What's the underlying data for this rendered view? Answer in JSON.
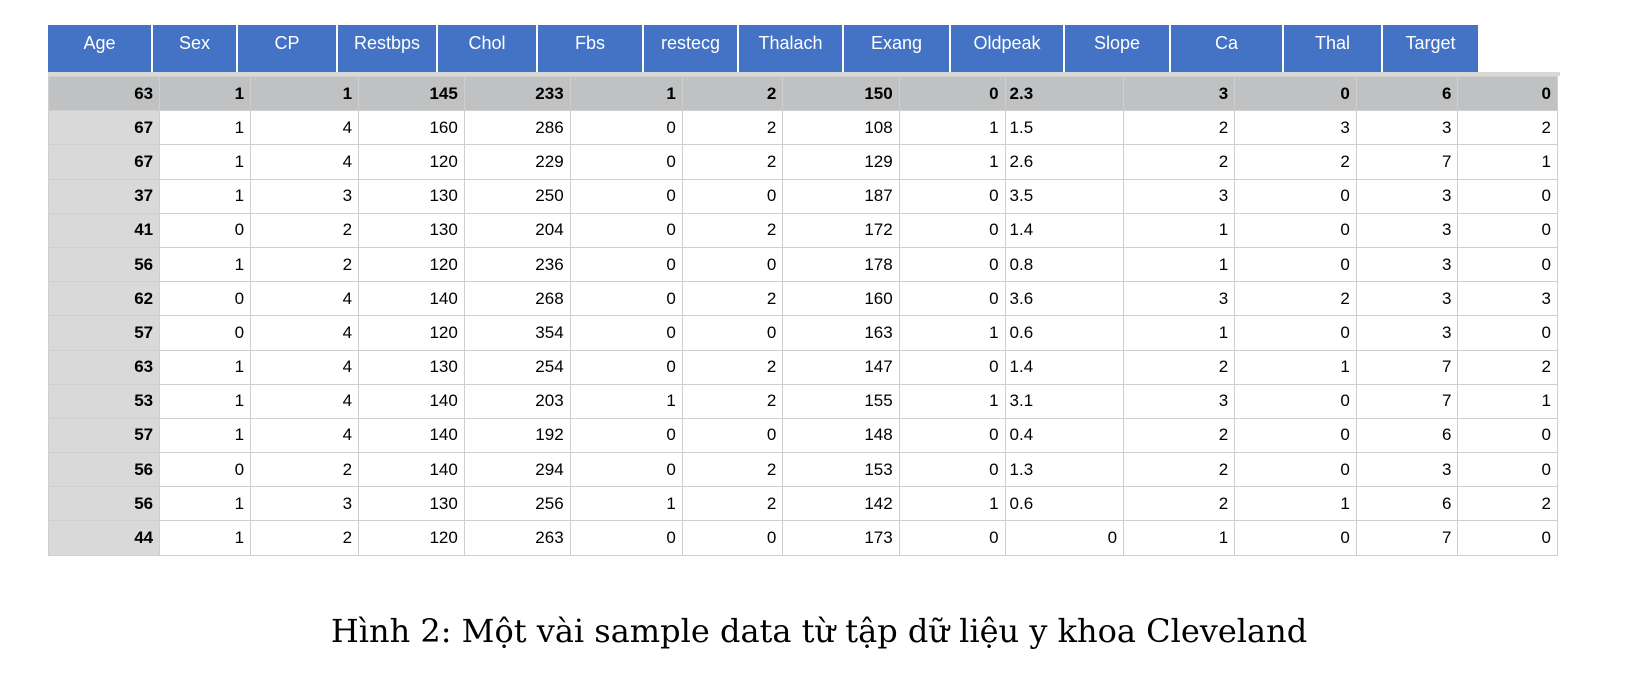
{
  "table": {
    "headers": [
      "Age",
      "Sex",
      "CP",
      "Restbps",
      "Chol",
      "Fbs",
      "restecg",
      "Thalach",
      "Exang",
      "Oldpeak",
      "Slope",
      "Ca",
      "Thal",
      "Target"
    ],
    "rows": [
      [
        "63",
        "1",
        "1",
        "145",
        "233",
        "1",
        "2",
        "150",
        "0",
        "2.3",
        "3",
        "0",
        "6",
        "0"
      ],
      [
        "67",
        "1",
        "4",
        "160",
        "286",
        "0",
        "2",
        "108",
        "1",
        "1.5",
        "2",
        "3",
        "3",
        "2"
      ],
      [
        "67",
        "1",
        "4",
        "120",
        "229",
        "0",
        "2",
        "129",
        "1",
        "2.6",
        "2",
        "2",
        "7",
        "1"
      ],
      [
        "37",
        "1",
        "3",
        "130",
        "250",
        "0",
        "0",
        "187",
        "0",
        "3.5",
        "3",
        "0",
        "3",
        "0"
      ],
      [
        "41",
        "0",
        "2",
        "130",
        "204",
        "0",
        "2",
        "172",
        "0",
        "1.4",
        "1",
        "0",
        "3",
        "0"
      ],
      [
        "56",
        "1",
        "2",
        "120",
        "236",
        "0",
        "0",
        "178",
        "0",
        "0.8",
        "1",
        "0",
        "3",
        "0"
      ],
      [
        "62",
        "0",
        "4",
        "140",
        "268",
        "0",
        "2",
        "160",
        "0",
        "3.6",
        "3",
        "2",
        "3",
        "3"
      ],
      [
        "57",
        "0",
        "4",
        "120",
        "354",
        "0",
        "0",
        "163",
        "1",
        "0.6",
        "1",
        "0",
        "3",
        "0"
      ],
      [
        "63",
        "1",
        "4",
        "130",
        "254",
        "0",
        "2",
        "147",
        "0",
        "1.4",
        "2",
        "1",
        "7",
        "2"
      ],
      [
        "53",
        "1",
        "4",
        "140",
        "203",
        "1",
        "2",
        "155",
        "1",
        "3.1",
        "3",
        "0",
        "7",
        "1"
      ],
      [
        "57",
        "1",
        "4",
        "140",
        "192",
        "0",
        "0",
        "148",
        "0",
        "0.4",
        "2",
        "0",
        "6",
        "0"
      ],
      [
        "56",
        "0",
        "2",
        "140",
        "294",
        "0",
        "2",
        "153",
        "0",
        "1.3",
        "2",
        "0",
        "3",
        "0"
      ],
      [
        "56",
        "1",
        "3",
        "130",
        "256",
        "1",
        "2",
        "142",
        "1",
        "0.6",
        "2",
        "1",
        "6",
        "2"
      ],
      [
        "44",
        "1",
        "2",
        "120",
        "263",
        "0",
        "0",
        "173",
        "0",
        "0",
        "1",
        "0",
        "7",
        "0"
      ]
    ]
  },
  "caption": "Hình 2: Một vài sample data từ tập dữ liệu y khoa Cleveland"
}
